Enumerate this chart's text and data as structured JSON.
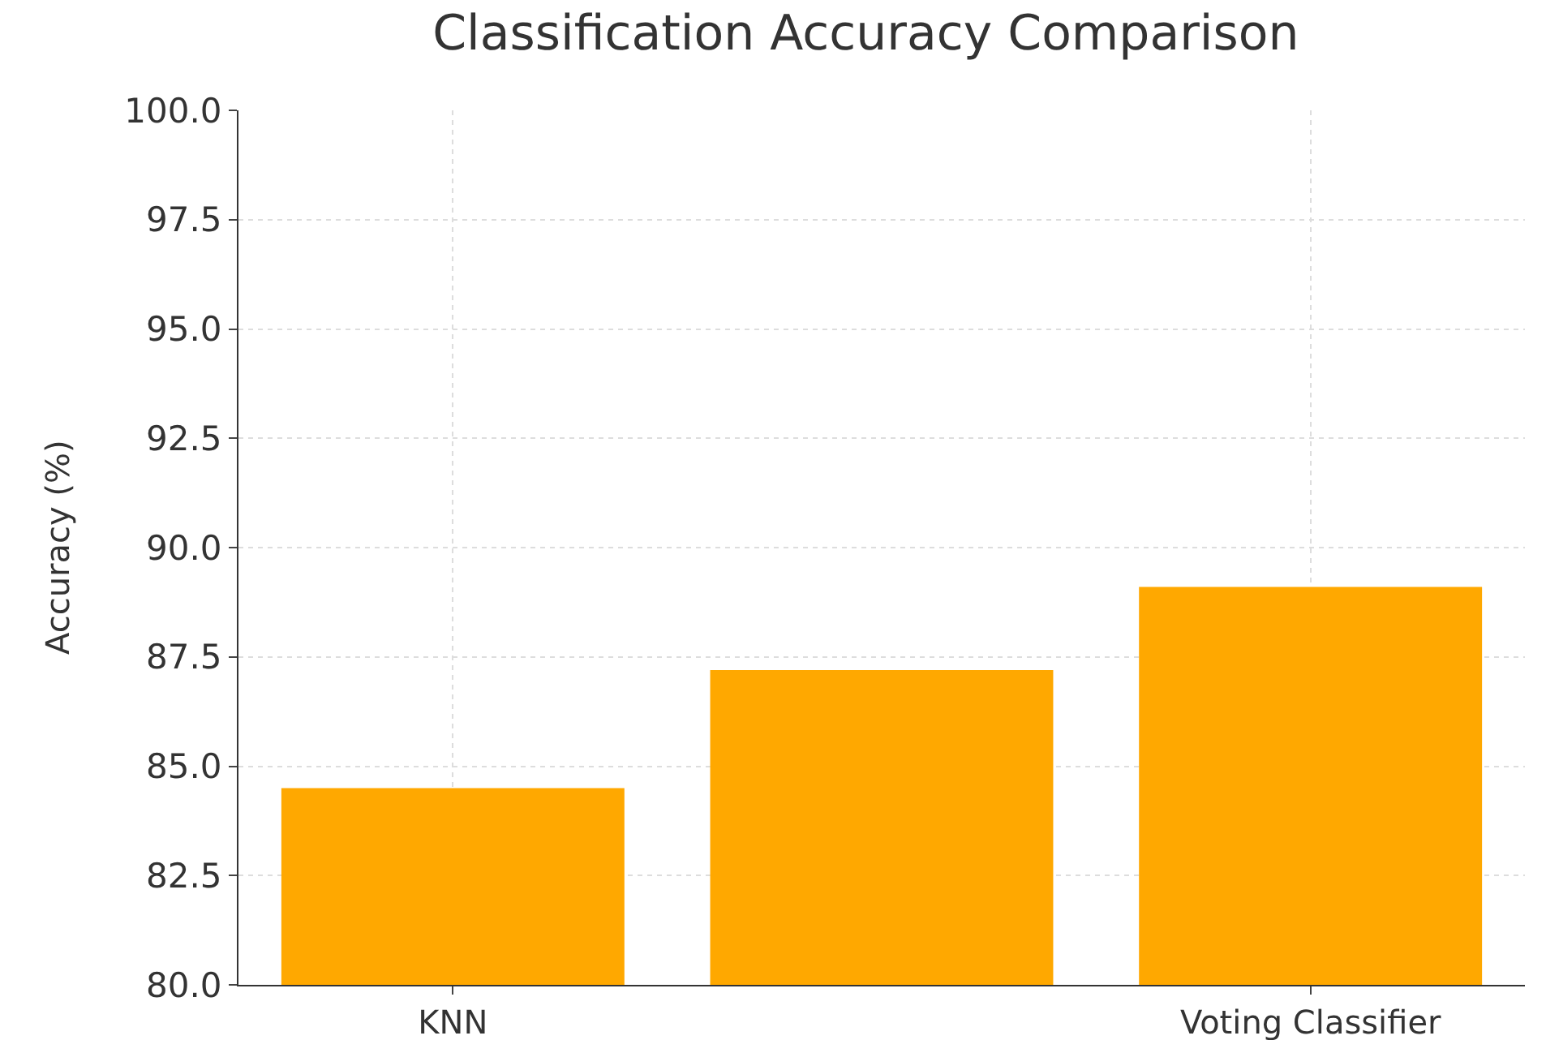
{
  "chart_data": {
    "type": "bar",
    "title": "Classification Accuracy Comparison",
    "ylabel": "Accuracy (%)",
    "categories": [
      "KNN",
      null,
      "Voting Classifier"
    ],
    "values": [
      84.5,
      87.2,
      89.1
    ],
    "color": "#ffa800",
    "ylim": [
      80,
      100
    ],
    "yticks": [
      {
        "value": 80,
        "label": "80.0"
      },
      {
        "value": 82.5,
        "label": "82.5"
      },
      {
        "value": 85,
        "label": "85.0"
      },
      {
        "value": 87.5,
        "label": "87.5"
      },
      {
        "value": 90,
        "label": "90.0"
      },
      {
        "value": 92.5,
        "label": "92.5"
      },
      {
        "value": 95,
        "label": "95.0"
      },
      {
        "value": 97.5,
        "label": "97.5"
      },
      {
        "value": 100,
        "label": "100.0"
      }
    ],
    "grid": true
  }
}
